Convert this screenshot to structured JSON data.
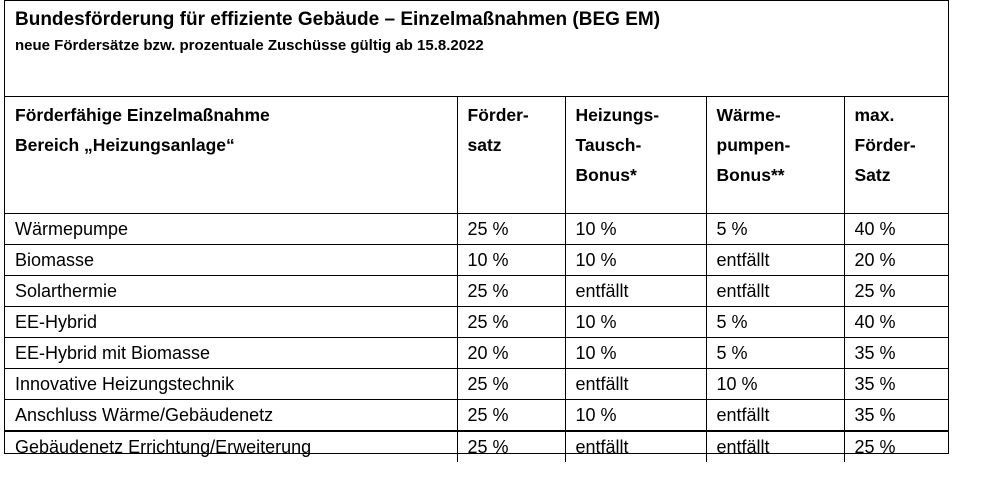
{
  "header": {
    "title": "Bundesförderung für effiziente Gebäude – Einzelmaßnahmen (BEG EM)",
    "subtitle": "neue Fördersätze bzw. prozentuale Zuschüsse gültig ab 15.8.2022"
  },
  "table": {
    "columns": [
      "Förderfähige Einzelmaßnahme\nBereich „Heizungsanlage“",
      "Förder-\nsatz",
      "Heizungs-\nTausch-\nBonus*",
      "Wärme-\npumpen-\nBonus**",
      "max.\nFörder-\nSatz"
    ],
    "rows": [
      [
        "Wärmepumpe",
        "25 %",
        "10 %",
        "5 %",
        "40 %"
      ],
      [
        "Biomasse",
        "10 %",
        "10 %",
        "entfällt",
        "20 %"
      ],
      [
        "Solarthermie",
        "25 %",
        "entfällt",
        "entfällt",
        "25 %"
      ],
      [
        "EE-Hybrid",
        "25 %",
        "10 %",
        "5 %",
        "40 %"
      ],
      [
        "EE-Hybrid mit Biomasse",
        "20 %",
        "10 %",
        "5 %",
        "35 %"
      ],
      [
        "Innovative Heizungstechnik",
        "25 %",
        "entfällt",
        "10 %",
        "35 %"
      ],
      [
        "Anschluss Wärme/Gebäudenetz",
        "25 %",
        "10 %",
        "entfällt",
        "35 %"
      ],
      [
        "Gebäudenetz Errichtung/Erweiterung",
        "25 %",
        "entfällt",
        "entfällt",
        "25 %"
      ]
    ]
  }
}
